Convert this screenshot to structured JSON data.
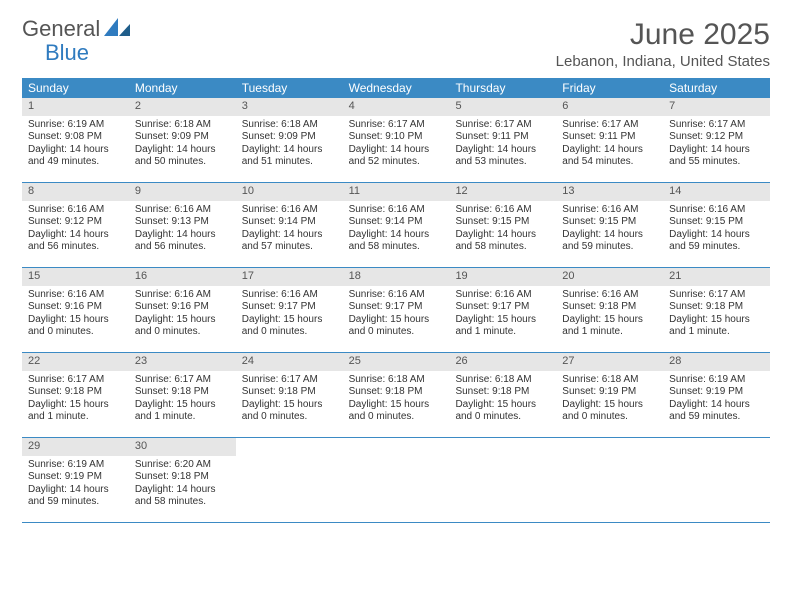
{
  "brand": {
    "part1": "General",
    "part2": "Blue"
  },
  "title": "June 2025",
  "location": "Lebanon, Indiana, United States",
  "colors": {
    "header_bg": "#3b8ac4",
    "header_text": "#ffffff",
    "daynum_bg": "#e6e6e6",
    "daynum_text": "#555555",
    "border": "#3b8ac4",
    "page_bg": "#ffffff",
    "body_text": "#333333",
    "title_text": "#555555"
  },
  "typography": {
    "title_fontsize": 30,
    "location_fontsize": 15,
    "dow_fontsize": 12,
    "daynum_fontsize": 11,
    "body_fontsize": 10
  },
  "dow": [
    "Sunday",
    "Monday",
    "Tuesday",
    "Wednesday",
    "Thursday",
    "Friday",
    "Saturday"
  ],
  "weeks": [
    [
      {
        "n": "1",
        "sr": "Sunrise: 6:19 AM",
        "ss": "Sunset: 9:08 PM",
        "d1": "Daylight: 14 hours",
        "d2": "and 49 minutes."
      },
      {
        "n": "2",
        "sr": "Sunrise: 6:18 AM",
        "ss": "Sunset: 9:09 PM",
        "d1": "Daylight: 14 hours",
        "d2": "and 50 minutes."
      },
      {
        "n": "3",
        "sr": "Sunrise: 6:18 AM",
        "ss": "Sunset: 9:09 PM",
        "d1": "Daylight: 14 hours",
        "d2": "and 51 minutes."
      },
      {
        "n": "4",
        "sr": "Sunrise: 6:17 AM",
        "ss": "Sunset: 9:10 PM",
        "d1": "Daylight: 14 hours",
        "d2": "and 52 minutes."
      },
      {
        "n": "5",
        "sr": "Sunrise: 6:17 AM",
        "ss": "Sunset: 9:11 PM",
        "d1": "Daylight: 14 hours",
        "d2": "and 53 minutes."
      },
      {
        "n": "6",
        "sr": "Sunrise: 6:17 AM",
        "ss": "Sunset: 9:11 PM",
        "d1": "Daylight: 14 hours",
        "d2": "and 54 minutes."
      },
      {
        "n": "7",
        "sr": "Sunrise: 6:17 AM",
        "ss": "Sunset: 9:12 PM",
        "d1": "Daylight: 14 hours",
        "d2": "and 55 minutes."
      }
    ],
    [
      {
        "n": "8",
        "sr": "Sunrise: 6:16 AM",
        "ss": "Sunset: 9:12 PM",
        "d1": "Daylight: 14 hours",
        "d2": "and 56 minutes."
      },
      {
        "n": "9",
        "sr": "Sunrise: 6:16 AM",
        "ss": "Sunset: 9:13 PM",
        "d1": "Daylight: 14 hours",
        "d2": "and 56 minutes."
      },
      {
        "n": "10",
        "sr": "Sunrise: 6:16 AM",
        "ss": "Sunset: 9:14 PM",
        "d1": "Daylight: 14 hours",
        "d2": "and 57 minutes."
      },
      {
        "n": "11",
        "sr": "Sunrise: 6:16 AM",
        "ss": "Sunset: 9:14 PM",
        "d1": "Daylight: 14 hours",
        "d2": "and 58 minutes."
      },
      {
        "n": "12",
        "sr": "Sunrise: 6:16 AM",
        "ss": "Sunset: 9:15 PM",
        "d1": "Daylight: 14 hours",
        "d2": "and 58 minutes."
      },
      {
        "n": "13",
        "sr": "Sunrise: 6:16 AM",
        "ss": "Sunset: 9:15 PM",
        "d1": "Daylight: 14 hours",
        "d2": "and 59 minutes."
      },
      {
        "n": "14",
        "sr": "Sunrise: 6:16 AM",
        "ss": "Sunset: 9:15 PM",
        "d1": "Daylight: 14 hours",
        "d2": "and 59 minutes."
      }
    ],
    [
      {
        "n": "15",
        "sr": "Sunrise: 6:16 AM",
        "ss": "Sunset: 9:16 PM",
        "d1": "Daylight: 15 hours",
        "d2": "and 0 minutes."
      },
      {
        "n": "16",
        "sr": "Sunrise: 6:16 AM",
        "ss": "Sunset: 9:16 PM",
        "d1": "Daylight: 15 hours",
        "d2": "and 0 minutes."
      },
      {
        "n": "17",
        "sr": "Sunrise: 6:16 AM",
        "ss": "Sunset: 9:17 PM",
        "d1": "Daylight: 15 hours",
        "d2": "and 0 minutes."
      },
      {
        "n": "18",
        "sr": "Sunrise: 6:16 AM",
        "ss": "Sunset: 9:17 PM",
        "d1": "Daylight: 15 hours",
        "d2": "and 0 minutes."
      },
      {
        "n": "19",
        "sr": "Sunrise: 6:16 AM",
        "ss": "Sunset: 9:17 PM",
        "d1": "Daylight: 15 hours",
        "d2": "and 1 minute."
      },
      {
        "n": "20",
        "sr": "Sunrise: 6:16 AM",
        "ss": "Sunset: 9:18 PM",
        "d1": "Daylight: 15 hours",
        "d2": "and 1 minute."
      },
      {
        "n": "21",
        "sr": "Sunrise: 6:17 AM",
        "ss": "Sunset: 9:18 PM",
        "d1": "Daylight: 15 hours",
        "d2": "and 1 minute."
      }
    ],
    [
      {
        "n": "22",
        "sr": "Sunrise: 6:17 AM",
        "ss": "Sunset: 9:18 PM",
        "d1": "Daylight: 15 hours",
        "d2": "and 1 minute."
      },
      {
        "n": "23",
        "sr": "Sunrise: 6:17 AM",
        "ss": "Sunset: 9:18 PM",
        "d1": "Daylight: 15 hours",
        "d2": "and 1 minute."
      },
      {
        "n": "24",
        "sr": "Sunrise: 6:17 AM",
        "ss": "Sunset: 9:18 PM",
        "d1": "Daylight: 15 hours",
        "d2": "and 0 minutes."
      },
      {
        "n": "25",
        "sr": "Sunrise: 6:18 AM",
        "ss": "Sunset: 9:18 PM",
        "d1": "Daylight: 15 hours",
        "d2": "and 0 minutes."
      },
      {
        "n": "26",
        "sr": "Sunrise: 6:18 AM",
        "ss": "Sunset: 9:18 PM",
        "d1": "Daylight: 15 hours",
        "d2": "and 0 minutes."
      },
      {
        "n": "27",
        "sr": "Sunrise: 6:18 AM",
        "ss": "Sunset: 9:19 PM",
        "d1": "Daylight: 15 hours",
        "d2": "and 0 minutes."
      },
      {
        "n": "28",
        "sr": "Sunrise: 6:19 AM",
        "ss": "Sunset: 9:19 PM",
        "d1": "Daylight: 14 hours",
        "d2": "and 59 minutes."
      }
    ],
    [
      {
        "n": "29",
        "sr": "Sunrise: 6:19 AM",
        "ss": "Sunset: 9:19 PM",
        "d1": "Daylight: 14 hours",
        "d2": "and 59 minutes."
      },
      {
        "n": "30",
        "sr": "Sunrise: 6:20 AM",
        "ss": "Sunset: 9:18 PM",
        "d1": "Daylight: 14 hours",
        "d2": "and 58 minutes."
      },
      null,
      null,
      null,
      null,
      null
    ]
  ]
}
